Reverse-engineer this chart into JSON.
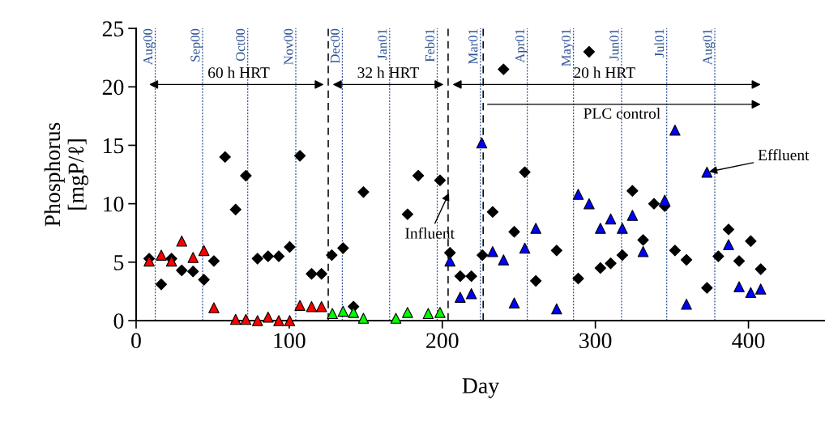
{
  "chart_data": {
    "type": "scatter",
    "xlabel": "Day",
    "ylabel": "Phosphorus\n[mgP/ℓ]",
    "xlim": [
      0,
      450
    ],
    "xticks": [
      0,
      100,
      200,
      300,
      400
    ],
    "ylim": [
      0,
      25
    ],
    "yticks": [
      0,
      5,
      10,
      15,
      20,
      25
    ],
    "grid": false,
    "legend": false,
    "series": [
      {
        "color": "#000000",
        "marker": "diamond",
        "x": [
          8.5,
          16.4,
          23.1,
          29.8,
          37.2,
          44.3,
          50.8,
          58.1,
          65,
          71.7,
          79.3,
          86.2,
          93.2,
          100.3,
          107,
          114.6,
          121.1,
          127.8,
          135.2,
          142,
          148.5,
          177.3,
          184.3,
          198.5,
          205,
          211.7,
          219,
          226.2,
          232.9,
          240,
          247,
          253.9,
          261.1,
          274.7,
          288.8,
          295.9,
          303.3,
          310,
          317.6,
          324.2,
          331.2,
          338.3,
          345.3,
          352,
          359.5,
          372.9,
          380.3,
          387,
          393.9,
          401.5,
          408
        ],
        "values": [
          5.3,
          3.1,
          5.3,
          4.3,
          4.2,
          3.5,
          5.1,
          14.0,
          9.5,
          12.4,
          5.3,
          5.5,
          5.5,
          6.3,
          14.1,
          4.0,
          4.0,
          5.6,
          6.2,
          1.2,
          11.0,
          9.1,
          12.4,
          12.0,
          5.8,
          3.8,
          3.8,
          5.6,
          9.3,
          21.5,
          7.6,
          12.7,
          3.4,
          6.0,
          3.6,
          23.0,
          4.5,
          4.9,
          5.6,
          11.1,
          6.9,
          10.0,
          9.8,
          6.0,
          5.2,
          2.8,
          5.5,
          7.8,
          5.1,
          6.8,
          4.4
        ]
      },
      {
        "color": "#ff0000",
        "marker": "triangle",
        "x": [
          8.5,
          16.4,
          23.1,
          29.8,
          37.2,
          44.3,
          50.8,
          65,
          71.7,
          79.3,
          86.2,
          93.2,
          100.3,
          107,
          114.6,
          121.1
        ],
        "values": [
          5.1,
          5.6,
          5.1,
          6.8,
          5.4,
          6.0,
          1.1,
          0.1,
          0.1,
          0.0,
          0.3,
          0.0,
          0.0,
          1.3,
          1.2,
          1.2
        ]
      },
      {
        "color": "#00ff00",
        "marker": "triangle",
        "x": [
          128.2,
          135.2,
          142,
          148.5,
          169.7,
          177.3,
          190.8,
          198.5
        ],
        "values": [
          0.6,
          0.8,
          0.7,
          0.2,
          0.2,
          0.7,
          0.6,
          0.7
        ]
      },
      {
        "color": "#0000ff",
        "marker": "triangle",
        "x": [
          205,
          211.7,
          219,
          225.8,
          232.9,
          240,
          247,
          253.9,
          261.1,
          274.7,
          288.8,
          295.9,
          303.3,
          310,
          317.6,
          324.2,
          331.2,
          345.3,
          352,
          359.5,
          372.9,
          387,
          393.9,
          401.5,
          408
        ],
        "values": [
          5.1,
          2.0,
          2.3,
          15.2,
          5.9,
          5.2,
          1.5,
          6.2,
          7.9,
          1.0,
          10.8,
          10.0,
          7.9,
          8.7,
          7.9,
          9.0,
          5.9,
          10.3,
          16.3,
          1.4,
          12.7,
          6.5,
          2.9,
          2.4,
          2.7
        ]
      }
    ],
    "ref_lines": [
      {
        "axis": "x",
        "value": 12.5,
        "label": "Aug00",
        "color": "#2f5597",
        "line_style": "dotted"
      },
      {
        "axis": "x",
        "value": 43.4,
        "label": "Sep00",
        "color": "#2f5597",
        "line_style": "dotted"
      },
      {
        "axis": "x",
        "value": 72.9,
        "label": "Oct00",
        "color": "#2f5597",
        "line_style": "dotted"
      },
      {
        "axis": "x",
        "value": 104.3,
        "label": "Nov00",
        "color": "#2f5597",
        "line_style": "dotted"
      },
      {
        "axis": "x",
        "value": 134.7,
        "label": "Dec00",
        "color": "#2f5597",
        "line_style": "dotted"
      },
      {
        "axis": "x",
        "value": 165.6,
        "label": "Jan01",
        "color": "#2f5597",
        "line_style": "dotted"
      },
      {
        "axis": "x",
        "value": 196.7,
        "label": "Feb01",
        "color": "#2f5597",
        "line_style": "dotted"
      },
      {
        "axis": "x",
        "value": 224.9,
        "label": "Mar01",
        "color": "#2f5597",
        "line_style": "dotted"
      },
      {
        "axis": "x",
        "value": 255.5,
        "label": "Apr01",
        "color": "#2f5597",
        "line_style": "dotted"
      },
      {
        "axis": "x",
        "value": 285.7,
        "label": "May01",
        "color": "#2f5597",
        "line_style": "dotted"
      },
      {
        "axis": "x",
        "value": 317.1,
        "label": "Jun01",
        "color": "#2f5597",
        "line_style": "dotted"
      },
      {
        "axis": "x",
        "value": 346.6,
        "label": "Jul01",
        "color": "#2f5597",
        "line_style": "dotted"
      },
      {
        "axis": "x",
        "value": 378,
        "label": "Aug01",
        "color": "#2f5597",
        "line_style": "dotted"
      },
      {
        "axis": "x",
        "value": 125.5,
        "label": null,
        "color": "#000000",
        "line_style": "dashed"
      },
      {
        "axis": "x",
        "value": 203.8,
        "label": null,
        "color": "#000000",
        "line_style": "dashed"
      },
      {
        "axis": "x",
        "value": 226.7,
        "label": null,
        "color": "#000000",
        "line_style": "dashed"
      }
    ],
    "annotations": [
      "60 h HRT",
      "32 h HRT",
      "20 h HRT",
      "PLC control",
      {
        "text": "Influent",
        "x": 205,
        "y": 11.1
      },
      {
        "text": "Effluent",
        "x": 372.9,
        "y": 12.7
      }
    ]
  }
}
